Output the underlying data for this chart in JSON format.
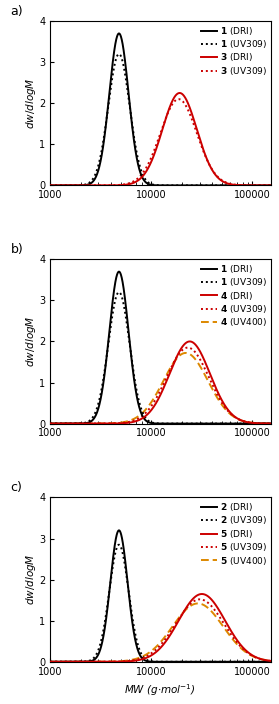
{
  "panels": [
    {
      "label": "a)",
      "legend": [
        {
          "id": "1",
          "detector": "DRI",
          "color": "#000000",
          "linestyle": "solid",
          "linewidth": 1.4
        },
        {
          "id": "1",
          "detector": "UV309",
          "color": "#000000",
          "linestyle": "dotted",
          "linewidth": 1.4
        },
        {
          "id": "3",
          "detector": "DRI",
          "color": "#cc0000",
          "linestyle": "solid",
          "linewidth": 1.4
        },
        {
          "id": "3",
          "detector": "UV309",
          "color": "#cc0000",
          "linestyle": "dotted",
          "linewidth": 1.4
        }
      ],
      "curves": [
        {
          "color": "#000000",
          "linestyle": "solid",
          "linewidth": 1.4,
          "log_peak": 3.68,
          "log_sigma": 0.095,
          "amplitude": 3.7
        },
        {
          "color": "#000000",
          "linestyle": "dotted",
          "linewidth": 1.4,
          "log_peak": 3.68,
          "log_sigma": 0.105,
          "amplitude": 3.2
        },
        {
          "color": "#cc0000",
          "linestyle": "solid",
          "linewidth": 1.4,
          "log_peak": 4.28,
          "log_sigma": 0.17,
          "amplitude": 2.25
        },
        {
          "color": "#cc0000",
          "linestyle": "dotted",
          "linewidth": 1.4,
          "log_peak": 4.27,
          "log_sigma": 0.18,
          "amplitude": 2.1
        }
      ],
      "ylim": [
        0,
        4
      ],
      "yticks": [
        0,
        1,
        2,
        3,
        4
      ],
      "show_xlabel": false
    },
    {
      "label": "b)",
      "legend": [
        {
          "id": "1",
          "detector": "DRI",
          "color": "#000000",
          "linestyle": "solid",
          "linewidth": 1.4
        },
        {
          "id": "1",
          "detector": "UV309",
          "color": "#000000",
          "linestyle": "dotted",
          "linewidth": 1.4
        },
        {
          "id": "4",
          "detector": "DRI",
          "color": "#cc0000",
          "linestyle": "solid",
          "linewidth": 1.4
        },
        {
          "id": "4",
          "detector": "UV309",
          "color": "#cc0000",
          "linestyle": "dotted",
          "linewidth": 1.4
        },
        {
          "id": "4",
          "detector": "UV400",
          "color": "#dd8800",
          "linestyle": "dashed",
          "linewidth": 1.4
        }
      ],
      "curves": [
        {
          "color": "#000000",
          "linestyle": "solid",
          "linewidth": 1.4,
          "log_peak": 3.68,
          "log_sigma": 0.095,
          "amplitude": 3.7
        },
        {
          "color": "#000000",
          "linestyle": "dotted",
          "linewidth": 1.4,
          "log_peak": 3.68,
          "log_sigma": 0.105,
          "amplitude": 3.2
        },
        {
          "color": "#cc0000",
          "linestyle": "solid",
          "linewidth": 1.4,
          "log_peak": 4.38,
          "log_sigma": 0.2,
          "amplitude": 2.0
        },
        {
          "color": "#cc0000",
          "linestyle": "dotted",
          "linewidth": 1.4,
          "log_peak": 4.36,
          "log_sigma": 0.21,
          "amplitude": 1.85
        },
        {
          "color": "#dd8800",
          "linestyle": "dashed",
          "linewidth": 1.4,
          "log_peak": 4.34,
          "log_sigma": 0.22,
          "amplitude": 1.72
        }
      ],
      "ylim": [
        0,
        4
      ],
      "yticks": [
        0,
        1,
        2,
        3,
        4
      ],
      "show_xlabel": false
    },
    {
      "label": "c)",
      "legend": [
        {
          "id": "2",
          "detector": "DRI",
          "color": "#000000",
          "linestyle": "solid",
          "linewidth": 1.4
        },
        {
          "id": "2",
          "detector": "UV309",
          "color": "#000000",
          "linestyle": "dotted",
          "linewidth": 1.4
        },
        {
          "id": "5",
          "detector": "DRI",
          "color": "#cc0000",
          "linestyle": "solid",
          "linewidth": 1.4
        },
        {
          "id": "5",
          "detector": "UV309",
          "color": "#cc0000",
          "linestyle": "dotted",
          "linewidth": 1.4
        },
        {
          "id": "5",
          "detector": "UV400",
          "color": "#dd8800",
          "linestyle": "dashed",
          "linewidth": 1.4
        }
      ],
      "curves": [
        {
          "color": "#000000",
          "linestyle": "solid",
          "linewidth": 1.4,
          "log_peak": 3.68,
          "log_sigma": 0.085,
          "amplitude": 3.2
        },
        {
          "color": "#000000",
          "linestyle": "dotted",
          "linewidth": 1.4,
          "log_peak": 3.68,
          "log_sigma": 0.095,
          "amplitude": 2.85
        },
        {
          "color": "#cc0000",
          "linestyle": "solid",
          "linewidth": 1.4,
          "log_peak": 4.5,
          "log_sigma": 0.23,
          "amplitude": 1.65
        },
        {
          "color": "#cc0000",
          "linestyle": "dotted",
          "linewidth": 1.4,
          "log_peak": 4.48,
          "log_sigma": 0.24,
          "amplitude": 1.52
        },
        {
          "color": "#dd8800",
          "linestyle": "dashed",
          "linewidth": 1.4,
          "log_peak": 4.46,
          "log_sigma": 0.25,
          "amplitude": 1.42
        }
      ],
      "ylim": [
        0,
        4
      ],
      "yticks": [
        0,
        1,
        2,
        3,
        4
      ],
      "show_xlabel": true
    }
  ],
  "xlim_log": [
    3.0,
    5.18
  ],
  "xlabel": "$MW$ (g$\\cdot$mol$^{-1}$)",
  "ylabel": "$dw/d$log$M$",
  "background_color": "#ffffff",
  "legend_fontsize": 6.5,
  "axis_fontsize": 7.5,
  "label_fontsize": 9,
  "tick_labelsize": 7
}
